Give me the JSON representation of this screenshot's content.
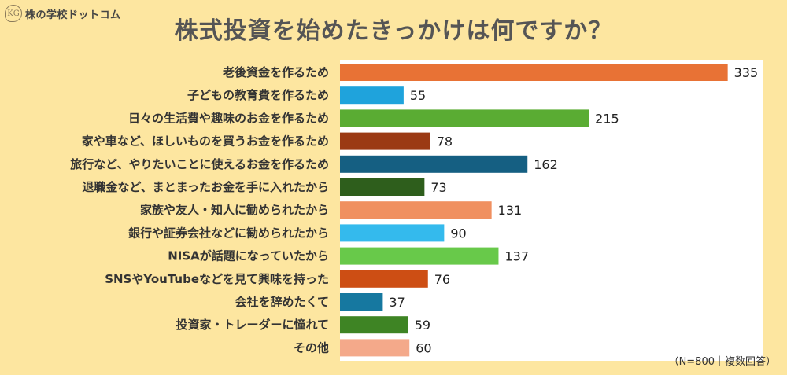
{
  "brand": {
    "name": "株の学校ドットコム",
    "mark": "KG"
  },
  "note": "（N=800｜複数回答）",
  "colors": [
    "#e87235",
    "#1fa3dc",
    "#5aac33",
    "#9b3a14",
    "#155f82",
    "#2e5e1c",
    "#f09060",
    "#34baed",
    "#68c94a",
    "#cd4e14",
    "#1678a0",
    "#3e8424",
    "#f4a98a"
  ],
  "chart_data": {
    "type": "bar",
    "orientation": "horizontal",
    "title": "株式投資を始めたきっかけは何ですか？",
    "categories": [
      "老後資金を作るため",
      "子どもの教育費を作るため",
      "日々の生活費や趣味のお金を作るため",
      "家や車など、ほしいものを買うお金を作るため",
      "旅行など、やりたいことに使えるお金を作るため",
      "退職金など、まとまったお金を手に入れたから",
      "家族や友人・知人に勧められたから",
      "銀行や証券会社などに勧められたから",
      "NISAが話題になっていたから",
      "SNSやYouTubeなどを見て興味を持った",
      "会社を辞めたくて",
      "投資家・トレーダーに憧れて",
      "その他"
    ],
    "values": [
      335,
      55,
      215,
      78,
      162,
      73,
      131,
      90,
      137,
      76,
      37,
      59,
      60
    ],
    "xlim": [
      0,
      340
    ],
    "grid": false,
    "legend": "none"
  }
}
